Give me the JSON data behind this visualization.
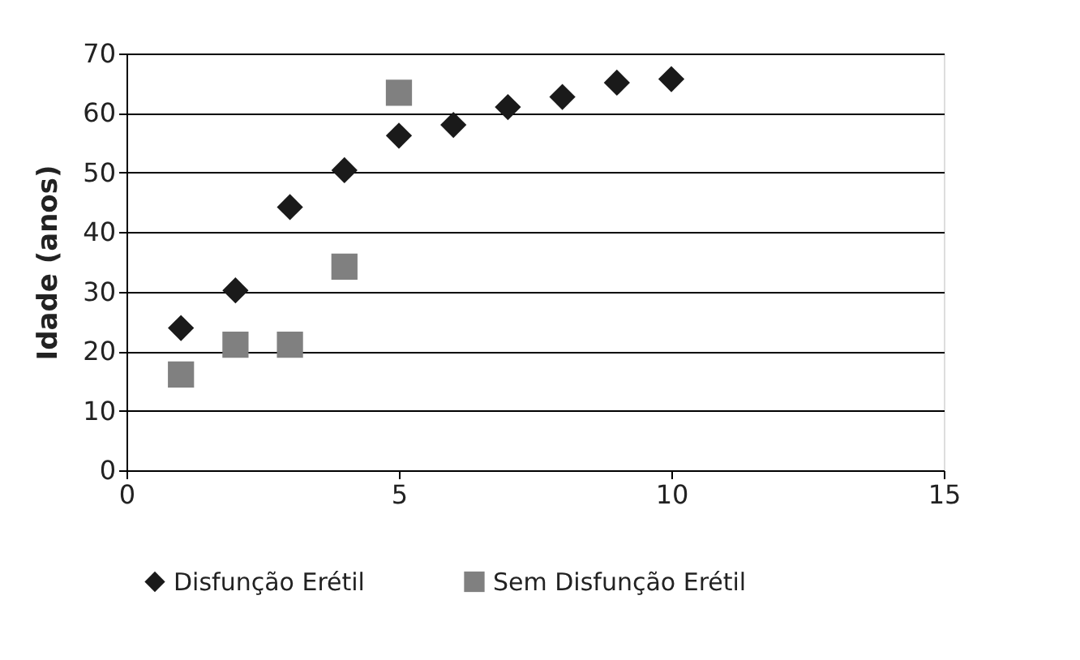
{
  "chart_data": {
    "type": "scatter",
    "ylabel": "Idade (anos)",
    "xlim": [
      0,
      15
    ],
    "xticks": [
      0,
      5,
      10,
      15
    ],
    "ylim": [
      0,
      70
    ],
    "yticks": [
      0,
      10,
      20,
      30,
      40,
      50,
      60,
      70
    ],
    "grid": "y",
    "legend": "bottom",
    "series": [
      {
        "name": "Disfunção Erétil",
        "color": "#1a1a1a",
        "marker": "diamond",
        "x": [
          1,
          2,
          3,
          4,
          5,
          6,
          7,
          8,
          9,
          10
        ],
        "values": [
          23.9,
          30.2,
          44.2,
          50.4,
          56.2,
          58.0,
          61.0,
          62.7,
          65.1,
          65.7
        ]
      },
      {
        "name": "Sem Disfunção Erétil",
        "color": "#808080",
        "marker": "square",
        "x": [
          1,
          2,
          3,
          4,
          5
        ],
        "values": [
          16.1,
          21.1,
          21.1,
          34.2,
          63.4
        ]
      }
    ]
  }
}
